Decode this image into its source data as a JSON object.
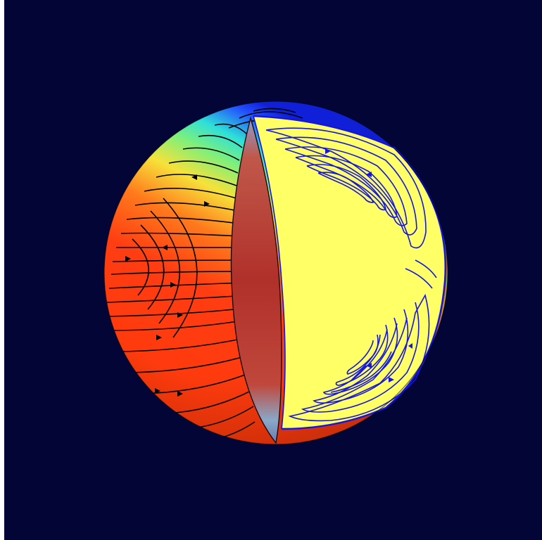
{
  "scene": {
    "colors": {
      "background": "#020536",
      "frame": "#ffffff",
      "surface_warm": "#ff2d0a",
      "surface_mid": "#ffe03a",
      "surface_cool": "#1a2cff",
      "cut_face": "#ffff66",
      "cut_streamlines": "#1414e6",
      "surface_streamlines": "#000000",
      "inner_wedge": "#b2352a"
    }
  }
}
